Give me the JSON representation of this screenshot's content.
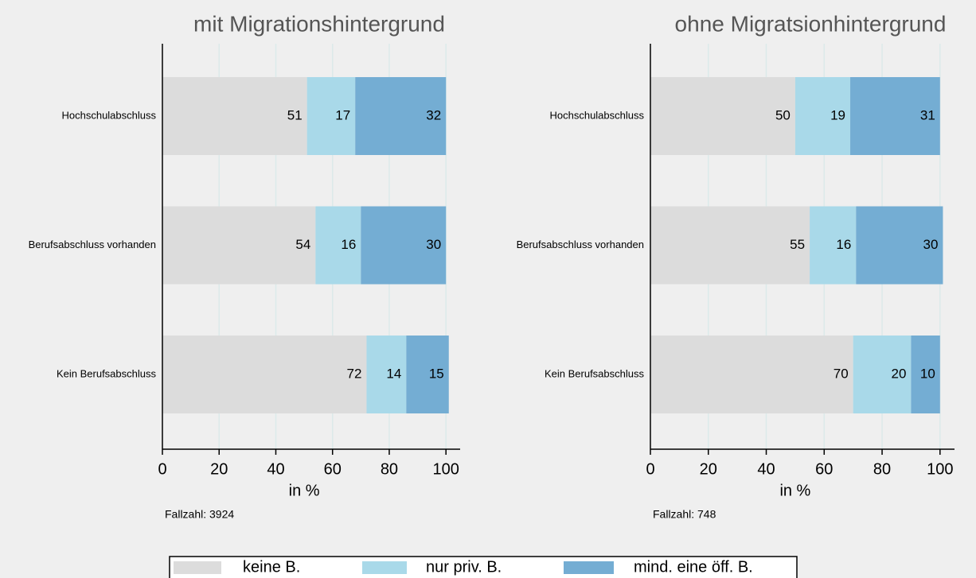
{
  "chart_data": [
    {
      "type": "bar",
      "title": "mit Migrationshintergrund",
      "categories": [
        "Hochschulabschluss",
        "Berufsabschluss vorhanden",
        "Kein Berufsabschluss"
      ],
      "series": [
        {
          "values": [
            51,
            54,
            72
          ]
        },
        {
          "values": [
            17,
            16,
            14
          ]
        },
        {
          "values": [
            32,
            30,
            15
          ]
        }
      ],
      "xlim": [
        0,
        105
      ],
      "xticks": [
        0,
        20,
        40,
        60,
        80,
        100
      ],
      "xlabel": "in %",
      "note": "Fallzahl: 3924",
      "grid": true
    },
    {
      "type": "bar",
      "title": "ohne Migratsionhintergrund",
      "categories": [
        "Hochschulabschluss",
        "Berufsabschluss vorhanden",
        "Kein Berufsabschluss"
      ],
      "series": [
        {
          "values": [
            50,
            55,
            70
          ]
        },
        {
          "values": [
            19,
            16,
            20
          ]
        },
        {
          "values": [
            31,
            30,
            10
          ]
        }
      ],
      "xlim": [
        0,
        105
      ],
      "xticks": [
        0,
        20,
        40,
        60,
        80,
        100
      ],
      "xlabel": "in %",
      "note": "Fallzahl: 748",
      "grid": true
    }
  ],
  "legend": [
    {
      "name": "keine B.",
      "color": "#dcdcdc"
    },
    {
      "name": "nur priv. B.",
      "color": "#a9d9e9"
    },
    {
      "name": "mind. eine öff. B.",
      "color": "#74add3"
    }
  ]
}
